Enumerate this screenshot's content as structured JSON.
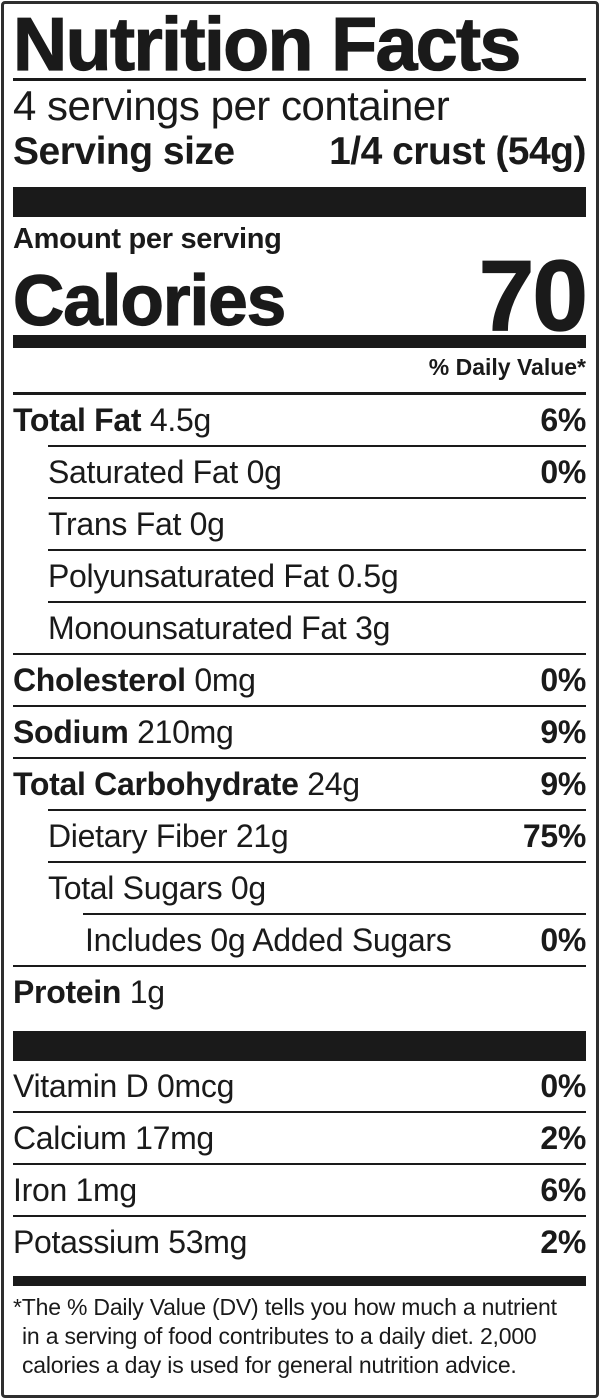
{
  "label": {
    "title": "Nutrition Facts",
    "servings_per_container": "4 servings per container",
    "serving_size_label": "Serving size",
    "serving_size_value": "1/4 crust (54g)",
    "amount_per_serving": "Amount per serving",
    "calories_label": "Calories",
    "calories_value": "70",
    "daily_value_header": "% Daily Value*"
  },
  "nutrients": [
    {
      "name": "Total Fat",
      "amount": "4.5g",
      "dv": "6%",
      "bold": true,
      "indent": 0,
      "divider": "none"
    },
    {
      "name": "Saturated Fat",
      "amount": "0g",
      "dv": "0%",
      "bold": false,
      "indent": 1,
      "divider": "sub"
    },
    {
      "name": "Trans Fat",
      "amount": "0g",
      "dv": "",
      "bold": false,
      "indent": 1,
      "divider": "sub"
    },
    {
      "name": "Polyunsaturated Fat",
      "amount": "0.5g",
      "dv": "",
      "bold": false,
      "indent": 1,
      "divider": "sub"
    },
    {
      "name": "Monounsaturated Fat",
      "amount": "3g",
      "dv": "",
      "bold": false,
      "indent": 1,
      "divider": "sub"
    },
    {
      "name": "Cholesterol",
      "amount": "0mg",
      "dv": "0%",
      "bold": true,
      "indent": 0,
      "divider": "full"
    },
    {
      "name": "Sodium",
      "amount": "210mg",
      "dv": "9%",
      "bold": true,
      "indent": 0,
      "divider": "full"
    },
    {
      "name": "Total Carbohydrate",
      "amount": "24g",
      "dv": "9%",
      "bold": true,
      "indent": 0,
      "divider": "full"
    },
    {
      "name": "Dietary Fiber",
      "amount": "21g",
      "dv": "75%",
      "bold": false,
      "indent": 1,
      "divider": "sub"
    },
    {
      "name": "Total Sugars",
      "amount": "0g",
      "dv": "",
      "bold": false,
      "indent": 1,
      "divider": "sub"
    },
    {
      "name": "Includes 0g Added Sugars",
      "amount": "",
      "dv": "0%",
      "bold": false,
      "indent": 2,
      "divider": "subsub"
    },
    {
      "name": "Protein",
      "amount": "1g",
      "dv": "",
      "bold": true,
      "indent": 0,
      "divider": "full"
    },
    {
      "type": "bar",
      "variant": "thick"
    },
    {
      "name": "Vitamin D",
      "amount": "0mcg",
      "dv": "0%",
      "bold": false,
      "indent": 0,
      "divider": "none"
    },
    {
      "name": "Calcium",
      "amount": "17mg",
      "dv": "2%",
      "bold": false,
      "indent": 0,
      "divider": "full"
    },
    {
      "name": "Iron",
      "amount": "1mg",
      "dv": "6%",
      "bold": false,
      "indent": 0,
      "divider": "full"
    },
    {
      "name": "Potassium",
      "amount": "53mg",
      "dv": "2%",
      "bold": false,
      "indent": 0,
      "divider": "full"
    }
  ],
  "footnote": {
    "lines": [
      "*The % Daily Value (DV) tells you how much a nutrient",
      "in a serving of food contributes to a daily diet. 2,000",
      "calories a day is used for general nutrition advice."
    ]
  },
  "colors": {
    "ink": "#1a1a1a",
    "border": "#2f2f2f",
    "background": "#ffffff"
  }
}
